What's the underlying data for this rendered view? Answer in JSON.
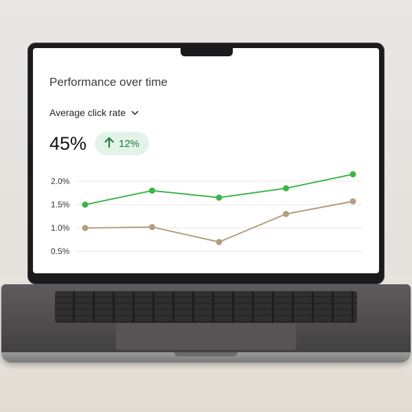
{
  "card": {
    "title": "Performance over time",
    "metric_selector": "Average click rate",
    "metric_value": "45%",
    "change_label": "12%",
    "change_direction": "up",
    "accent_color": "#1e7a3a",
    "badge_color": "#e4f3e8"
  },
  "chart_data": {
    "type": "line",
    "title": "",
    "xlabel": "",
    "ylabel": "",
    "ylim": [
      0.5,
      2.0
    ],
    "yticks": [
      "2.0%",
      "1.5%",
      "1.0%",
      "0.5%"
    ],
    "ytick_values": [
      2.0,
      1.5,
      1.0,
      0.5
    ],
    "x": [
      1,
      2,
      3,
      4,
      5
    ],
    "grid": true,
    "series": [
      {
        "values": [
          1.5,
          1.8,
          1.65,
          1.85,
          2.15
        ],
        "color": "#3bb54a"
      },
      {
        "values": [
          1.0,
          1.02,
          0.7,
          1.3,
          1.57
        ],
        "color": "#b39f7f"
      }
    ]
  }
}
